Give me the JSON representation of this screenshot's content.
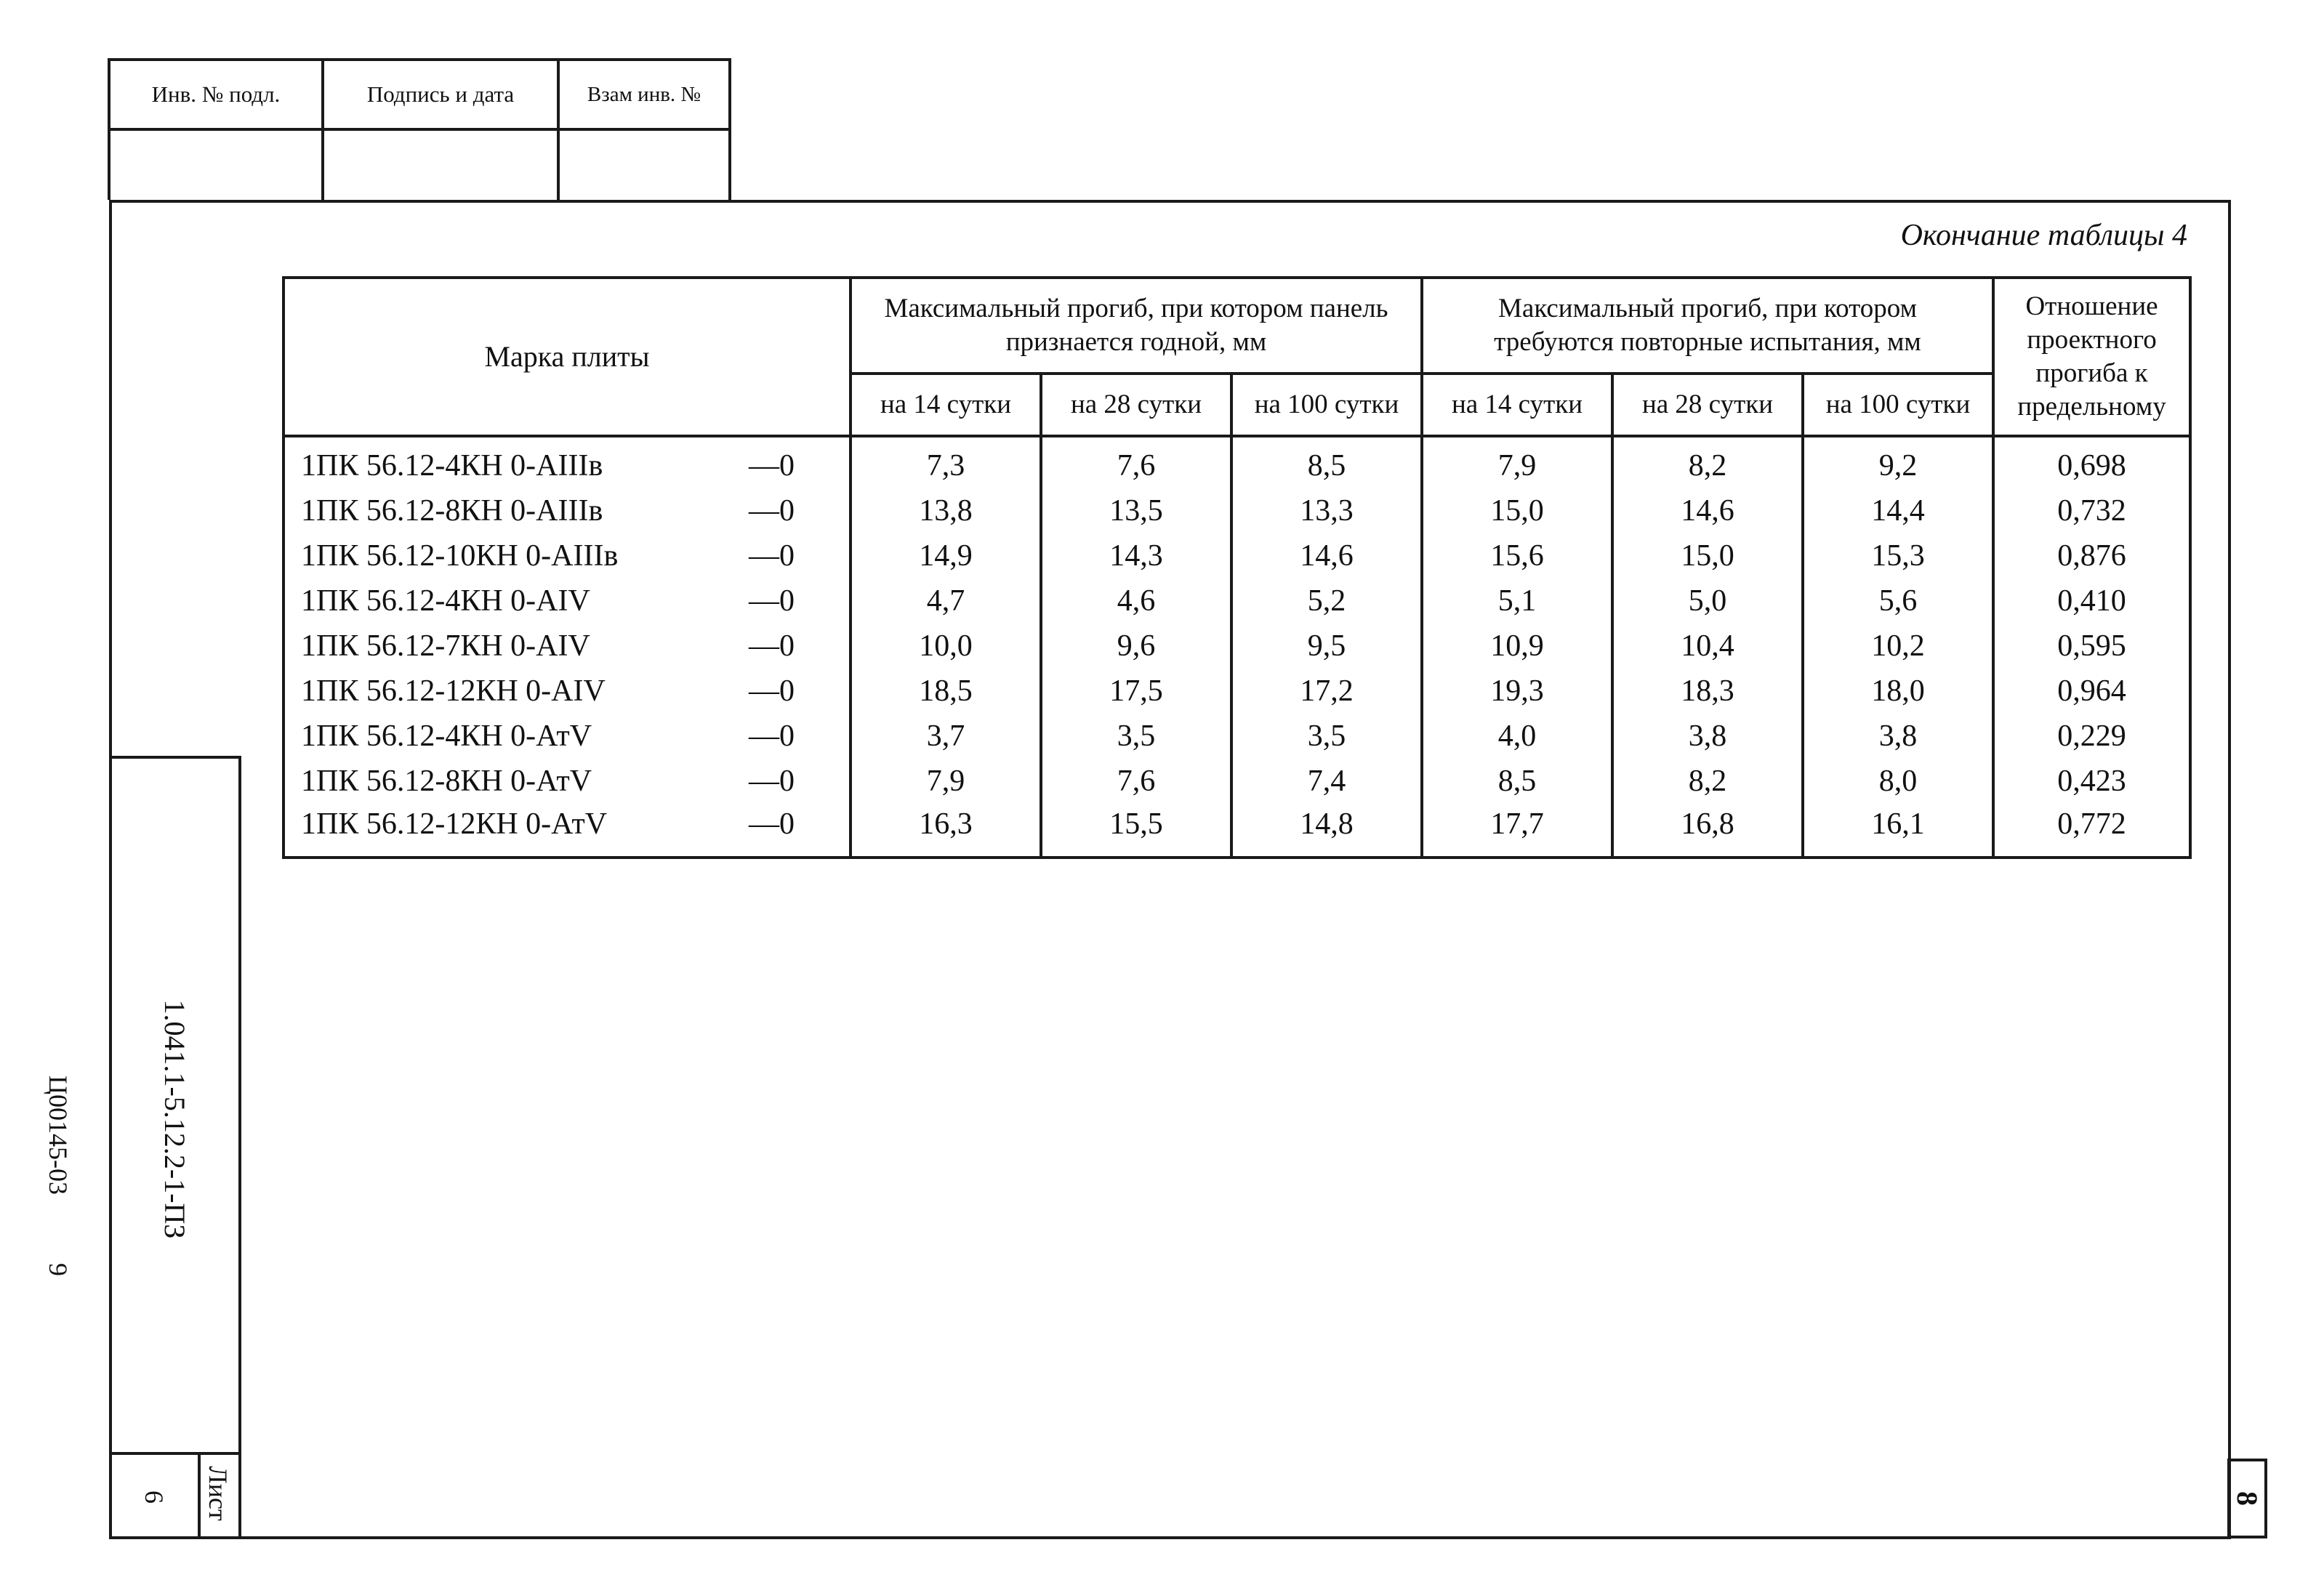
{
  "stamp": {
    "headers": [
      "Инв. № подл.",
      "Подпись и дата",
      "Взам инв. №"
    ],
    "values": [
      "",
      "",
      ""
    ]
  },
  "caption": "Окончание таблицы 4",
  "table": {
    "col_brand": "Марка плиты",
    "group1": "Максимальный прогиб, при котором панель признается годной, мм",
    "group2": "Максимальный прогиб, при котором требуются повторные испытания, мм",
    "col_ratio": "Отношение проектного прогиба к предельному",
    "sub": [
      "на 14 сутки",
      "на 28 сутки",
      "на 100 сутки",
      "на 14 сутки",
      "на 28 сутки",
      "на 100 сутки"
    ],
    "rows": [
      {
        "brand": "1ПК 56.12-4КН 0-AIIIв",
        "suffix": "—0",
        "v": [
          "7,3",
          "7,6",
          "8,5",
          "7,9",
          "8,2",
          "9,2",
          "0,698"
        ]
      },
      {
        "brand": "1ПК 56.12-8КН 0-AIIIв",
        "suffix": "—0",
        "v": [
          "13,8",
          "13,5",
          "13,3",
          "15,0",
          "14,6",
          "14,4",
          "0,732"
        ]
      },
      {
        "brand": "1ПК 56.12-10КН 0-AIIIв",
        "suffix": "—0",
        "v": [
          "14,9",
          "14,3",
          "14,6",
          "15,6",
          "15,0",
          "15,3",
          "0,876"
        ]
      },
      {
        "brand": "1ПК 56.12-4КН 0-AIV",
        "suffix": "—0",
        "v": [
          "4,7",
          "4,6",
          "5,2",
          "5,1",
          "5,0",
          "5,6",
          "0,410"
        ]
      },
      {
        "brand": "1ПК 56.12-7КН 0-AIV",
        "suffix": "—0",
        "v": [
          "10,0",
          "9,6",
          "9,5",
          "10,9",
          "10,4",
          "10,2",
          "0,595"
        ]
      },
      {
        "brand": "1ПК 56.12-12КН 0-AIV",
        "suffix": "—0",
        "v": [
          "18,5",
          "17,5",
          "17,2",
          "19,3",
          "18,3",
          "18,0",
          "0,964"
        ]
      },
      {
        "brand": "1ПК 56.12-4КН 0-АтV",
        "suffix": "—0",
        "v": [
          "3,7",
          "3,5",
          "3,5",
          "4,0",
          "3,8",
          "3,8",
          "0,229"
        ]
      },
      {
        "brand": "1ПК 56.12-8КН 0-АтV",
        "suffix": "—0",
        "v": [
          "7,9",
          "7,6",
          "7,4",
          "8,5",
          "8,2",
          "8,0",
          "0,423"
        ]
      },
      {
        "brand": "1ПК 56.12-12КН 0-АтV",
        "suffix": "—0",
        "v": [
          "16,3",
          "15,5",
          "14,8",
          "17,7",
          "16,8",
          "16,1",
          "0,772"
        ]
      }
    ]
  },
  "side": {
    "doc_code": "1.041.1-5.12.2-1-ПЗ",
    "sheet_label": "Лист",
    "sheet_number": "6",
    "archive_code": "Ц00145-03",
    "archive_sheet": "9",
    "page_number": "8"
  }
}
